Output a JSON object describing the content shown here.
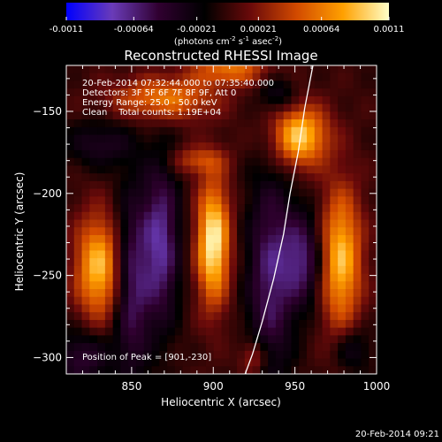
{
  "chart_data": {
    "type": "heatmap",
    "title": "Reconstructed RHESSI Image",
    "xlabel": "Heliocentric X (arcsec)",
    "ylabel": "Heliocentric Y (arcsec)",
    "xlim": [
      810,
      1000
    ],
    "ylim": [
      -310,
      -122
    ],
    "x_ticks": [
      850,
      900,
      950,
      1000
    ],
    "y_ticks": [
      -150,
      -200,
      -250,
      -300
    ],
    "colorbar": {
      "range": [
        -0.0011,
        0.0011
      ],
      "ticks": [
        "-0.0011",
        "-0.00064",
        "-0.00021",
        "0.00021",
        "0.00064",
        "0.0011"
      ],
      "tick_values": [
        -0.0011,
        -0.00064,
        -0.00021,
        0.00021,
        0.00064,
        0.0011
      ],
      "unit_main": "(photons cm",
      "unit_exp1": "-2",
      "unit_mid": " s",
      "unit_exp2": "-1",
      "unit_mid2": " asec",
      "unit_exp3": "-2",
      "unit_close": ")",
      "colors": [
        "#0000ff",
        "#6a3bb8",
        "#300030",
        "#000000",
        "#6a0a0a",
        "#d24a00",
        "#ffa000",
        "#ffffc8"
      ]
    },
    "annotations": [
      "20-Feb-2014 07:32:44.000 to 07:35:40.000",
      "Detectors: 3F 5F 6F 7F 8F 9F, Att 0",
      "Energy Range: 25.0 - 50.0 keV",
      "Clean    Total counts: 1.19E+04"
    ],
    "peak_text": "Position of Peak = [901,-230]",
    "timestamp": "20-Feb-2014 09:21",
    "limb_curve": [
      [
        919.5,
        -310
      ],
      [
        924,
        -298
      ],
      [
        930,
        -278
      ],
      [
        937,
        -252
      ],
      [
        943,
        -225
      ],
      [
        947,
        -200
      ],
      [
        952,
        -175
      ],
      [
        956,
        -148
      ],
      [
        961,
        -122
      ]
    ],
    "sources": [
      {
        "x": 900,
        "y": -230,
        "sx": 7,
        "sy": 26,
        "amp": 0.0011
      },
      {
        "x": 953,
        "y": -165,
        "sx": 12,
        "sy": 13,
        "amp": 0.00095
      },
      {
        "x": 830,
        "y": -245,
        "sx": 10,
        "sy": 22,
        "amp": 0.0009
      },
      {
        "x": 978,
        "y": -240,
        "sx": 9,
        "sy": 30,
        "amp": 0.0009
      },
      {
        "x": 870,
        "y": -142,
        "sx": 22,
        "sy": 9,
        "amp": 0.00065
      },
      {
        "x": 910,
        "y": -125,
        "sx": 16,
        "sy": 6,
        "amp": 0.0006
      },
      {
        "x": 890,
        "y": -180,
        "sx": 12,
        "sy": 6,
        "amp": 0.0004
      },
      {
        "x": 925,
        "y": -300,
        "sx": 6,
        "sy": 8,
        "amp": 0.0004
      },
      {
        "x": 850,
        "y": -255,
        "sx": 8,
        "sy": 40,
        "amp": -0.0006
      },
      {
        "x": 868,
        "y": -230,
        "sx": 8,
        "sy": 35,
        "amp": -0.0007
      },
      {
        "x": 935,
        "y": -250,
        "sx": 10,
        "sy": 45,
        "amp": -0.0006
      },
      {
        "x": 955,
        "y": -240,
        "sx": 9,
        "sy": 20,
        "amp": -0.0006
      },
      {
        "x": 820,
        "y": -300,
        "sx": 12,
        "sy": 12,
        "amp": -0.00045
      },
      {
        "x": 830,
        "y": -170,
        "sx": 14,
        "sy": 10,
        "amp": -0.00035
      },
      {
        "x": 985,
        "y": -295,
        "sx": 8,
        "sy": 10,
        "amp": -0.00035
      },
      {
        "x": 940,
        "y": -140,
        "sx": 8,
        "sy": 8,
        "amp": -0.0003
      }
    ]
  }
}
